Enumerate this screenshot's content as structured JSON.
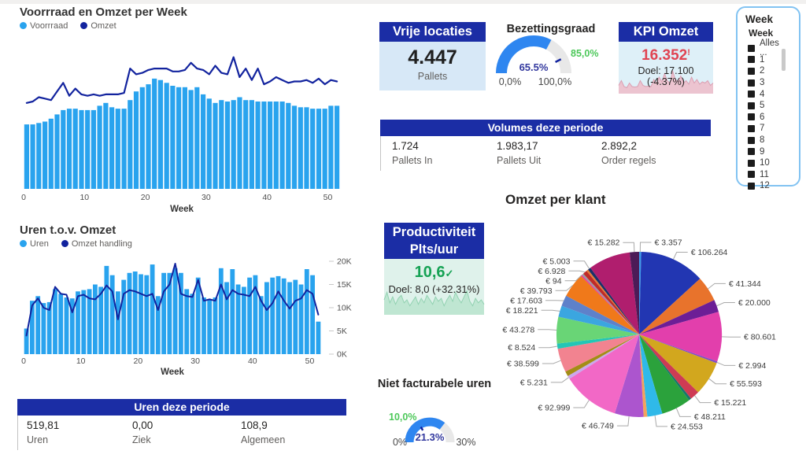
{
  "colors": {
    "bar_light_blue": "#29A3EE",
    "line_dark_blue": "#12239E",
    "banner_blue": "#1B2DA5",
    "card_blue_bg": "#D7E8F7",
    "kpi_bg": "#DEF0F8",
    "kpi_red": "#E04452",
    "kpi_spark_fill": "#ECC4D0",
    "kpi_spark_stroke": "#DB9FB2",
    "prod_bg": "#DFF2EB",
    "prod_spark_fill": "#BFE6D2",
    "prod_spark_stroke": "#93D2B2",
    "value_green": "#15A254",
    "target_green": "#4DC85A",
    "gauge_blue": "#2E86F0",
    "gauge_track": "#E8E8E8",
    "text_dark": "#252423",
    "text_gray": "#605E5C"
  },
  "chart_data": [
    {
      "id": "voorraad-omzet",
      "type": "bar+line",
      "title": "Voorrraad en Omzet per Week",
      "xlabel": "Week",
      "x_ticks": [
        0,
        10,
        20,
        30,
        40,
        50
      ],
      "ylim": [
        0,
        100
      ],
      "series": [
        {
          "name": "Voorrraad",
          "type": "bar",
          "color": "#29A3EE",
          "values": [
            45,
            45,
            46,
            47,
            49,
            52,
            55,
            56,
            56,
            55,
            55,
            55,
            58,
            60,
            57,
            56,
            56,
            62,
            68,
            71,
            73,
            77,
            76,
            74,
            72,
            71,
            71,
            69,
            71,
            66,
            63,
            60,
            62,
            61,
            62,
            64,
            62,
            62,
            61,
            61,
            61,
            61,
            61,
            60,
            58,
            57,
            57,
            56,
            56,
            56,
            58,
            58
          ]
        },
        {
          "name": "Omzet",
          "type": "line",
          "color": "#12239E",
          "values": [
            60,
            61,
            64,
            63,
            62,
            68,
            74,
            65,
            70,
            66,
            65,
            66,
            65,
            66,
            66,
            66,
            67,
            84,
            80,
            81,
            83,
            84,
            84,
            84,
            82,
            82,
            83,
            88,
            84,
            83,
            80,
            86,
            81,
            80,
            92,
            78,
            84,
            76,
            84,
            73,
            75,
            78,
            76,
            74,
            75,
            75,
            76,
            74,
            77,
            73,
            76,
            75
          ]
        }
      ]
    },
    {
      "id": "uren-omzet",
      "type": "bar+line",
      "title": "Uren t.o.v. Omzet",
      "xlabel": "Week",
      "x_ticks": [
        0,
        10,
        20,
        30,
        40,
        50
      ],
      "y_ticks": [
        "0K",
        "5K",
        "10K",
        "15K",
        "20K"
      ],
      "ylim": [
        0,
        20
      ],
      "axis_side": "right",
      "series": [
        {
          "name": "Uren",
          "type": "bar",
          "color": "#29A3EE",
          "values": [
            5.5,
            11.5,
            12.5,
            11,
            11.2,
            14,
            13,
            12.2,
            12,
            13.5,
            13.8,
            14,
            15,
            14.5,
            19,
            17,
            13.5,
            16,
            17.5,
            17.8,
            17.2,
            17,
            19.3,
            12.5,
            17.5,
            17.5,
            18.5,
            17.5,
            14,
            13,
            16.5,
            12.2,
            11.8,
            12.2,
            18.5,
            15.5,
            18.3,
            15,
            14.5,
            16.5,
            17,
            12.5,
            15.5,
            16.5,
            16.8,
            16.3,
            15.5,
            16,
            15,
            18.3,
            17,
            7
          ]
        },
        {
          "name": "Omzet handling",
          "type": "line",
          "color": "#12239E",
          "values": [
            4,
            10.5,
            12,
            10,
            9.5,
            14.5,
            13,
            12.8,
            9,
            12.5,
            12.8,
            12,
            11.8,
            13,
            14.8,
            13.5,
            7.5,
            13,
            13.8,
            13.5,
            13,
            12.5,
            13,
            9.5,
            13.5,
            15,
            19.5,
            13,
            12.5,
            12.3,
            16,
            11.5,
            11.8,
            11.5,
            15,
            11.8,
            13.8,
            13,
            12.8,
            12.5,
            14.5,
            11.5,
            9.5,
            11,
            13.5,
            11.5,
            9.8,
            11.5,
            12,
            13.8,
            13,
            8.5
          ]
        }
      ]
    },
    {
      "id": "omzet-per-klant",
      "type": "pie",
      "title": "Omzet per klant",
      "min_render_value": 2200,
      "slices": [
        {
          "label": "€ 3.357",
          "value": 3357,
          "color": "#3D9BE9"
        },
        {
          "label": "€ 106.264",
          "value": 106264,
          "color": "#2236B2"
        },
        {
          "label": "€ 41.344",
          "value": 41344,
          "color": "#E8732C"
        },
        {
          "label": "€ 20.000",
          "value": 20000,
          "color": "#6C1E96"
        },
        {
          "label": "€ 80.601",
          "value": 80601,
          "color": "#E23FAC"
        },
        {
          "label": "€ 2.994",
          "value": 2994,
          "color": "#7D4FC4"
        },
        {
          "label": "€ 55.593",
          "value": 55593,
          "color": "#D2A71E"
        },
        {
          "label": "€ 15.221",
          "value": 15221,
          "color": "#CE3B54"
        },
        {
          "label": null,
          "value": 4000,
          "color": "#15796A"
        },
        {
          "label": "€ 48.211",
          "value": 48211,
          "color": "#2BA23C"
        },
        {
          "label": "€ 24.553",
          "value": 24553,
          "color": "#2FB9E9"
        },
        {
          "label": null,
          "value": 6000,
          "color": "#F2A35C"
        },
        {
          "label": "€ 46.749",
          "value": 46749,
          "color": "#AC55CE"
        },
        {
          "label": "€ 92.999",
          "value": 92999,
          "color": "#F268C6"
        },
        {
          "label": "€ 5.231",
          "value": 5231,
          "color": "#C9A9EC"
        },
        {
          "label": null,
          "value": 8000,
          "color": "#A38D16"
        },
        {
          "label": "€ 38.599",
          "value": 38599,
          "color": "#F28390"
        },
        {
          "label": "€ 8.524",
          "value": 8524,
          "color": "#23C6B6"
        },
        {
          "label": "€ 43.278",
          "value": 43278,
          "color": "#69D576"
        },
        {
          "label": "€ 18.221",
          "value": 18221,
          "color": "#3BA6E0"
        },
        {
          "label": "€ 17.603",
          "value": 17603,
          "color": "#5E81CA"
        },
        {
          "label": "€ 39.793",
          "value": 39793,
          "color": "#F0791A"
        },
        {
          "label": "€ 94",
          "value": 94,
          "color": "#E93598"
        },
        {
          "label": null,
          "value": 3000,
          "color": "#9A9AA2"
        },
        {
          "label": "€ 6.928",
          "value": 6928,
          "color": "#BF2B28"
        },
        {
          "label": null,
          "value": 3000,
          "color": "#E87A32"
        },
        {
          "label": "€ 5.003",
          "value": 5003,
          "color": "#1B3169"
        },
        {
          "label": null,
          "value": 68000,
          "color": "#B01E6E"
        },
        {
          "label": "€ 15.282",
          "value": 15282,
          "color": "#4C1B57"
        }
      ]
    },
    {
      "id": "bezettingsgraad",
      "type": "gauge",
      "title": "Bezettingsgraad",
      "value": 65.5,
      "value_display": "65.5%",
      "min_label": "0,0%",
      "max_label": "100,0%",
      "target_label": "85,0%",
      "target_fraction": 0.85,
      "fill_fraction": 0.655
    },
    {
      "id": "niet-facturabele-uren",
      "type": "gauge",
      "title": "Niet facturabele uren",
      "value": 21.3,
      "value_display": "21.3%",
      "min_label": "0%",
      "max_label": "30%",
      "target_label": "10,0%",
      "target_fraction": 0.333,
      "fill_fraction": 0.71
    }
  ],
  "cards": {
    "vrije_locaties": {
      "title": "Vrije locaties",
      "value": "4.447",
      "unit": "Pallets"
    },
    "kpi_omzet": {
      "title": "KPI Omzet",
      "value": "16.352",
      "alert": "!",
      "goal": "Doel: 17.100 (-4.37%)",
      "sparkline": [
        0.35,
        0.55,
        0.3,
        0.25,
        0.45,
        0.3,
        0.28,
        0.3,
        0.55,
        0.35,
        0.3,
        0.32,
        0.3,
        0.6,
        0.45,
        0.7,
        0.5,
        0.85,
        0.55,
        0.45,
        0.95,
        0.6,
        0.5,
        0.75,
        0.45,
        0.55,
        0.4,
        0.7,
        0.45,
        0.6,
        0.4,
        0.5,
        0.45,
        0.55,
        0.35,
        0.45
      ]
    },
    "productiviteit": {
      "title_line1": "Productiviteit",
      "title_line2": "Plts/uur",
      "value": "10,6",
      "check": "✓",
      "goal": "Doel: 8,0 (+32.31%)",
      "sparkline": [
        0.5,
        0.75,
        0.4,
        0.6,
        0.35,
        0.55,
        0.65,
        0.4,
        0.5,
        0.3,
        0.45,
        0.6,
        0.35,
        0.55,
        0.4,
        0.65,
        0.5,
        0.35,
        0.6,
        0.45,
        0.55,
        0.3,
        0.5,
        0.65,
        0.45,
        0.75,
        0.55,
        0.4,
        0.6,
        0.8,
        0.45,
        0.3,
        0.55,
        0.4,
        0.5,
        0.35
      ]
    }
  },
  "banners": {
    "uren": {
      "title": "Uren deze periode",
      "items": [
        {
          "value": "519,81",
          "label": "Uren"
        },
        {
          "value": "0,00",
          "label": "Ziek"
        },
        {
          "value": "108,9",
          "label": "Algemeen"
        }
      ]
    },
    "volumes": {
      "title": "Volumes deze periode",
      "items": [
        {
          "value": "1.724",
          "label": "Pallets In"
        },
        {
          "value": "1.983,17",
          "label": "Pallets Uit"
        },
        {
          "value": "2.892,2",
          "label": "Order regels"
        }
      ]
    }
  },
  "slicer": {
    "title": "Week",
    "field": "Week",
    "items": [
      "Alles ...",
      "1",
      "2",
      "3",
      "4",
      "5",
      "6",
      "7",
      "8",
      "9",
      "10",
      "11",
      "12"
    ]
  }
}
